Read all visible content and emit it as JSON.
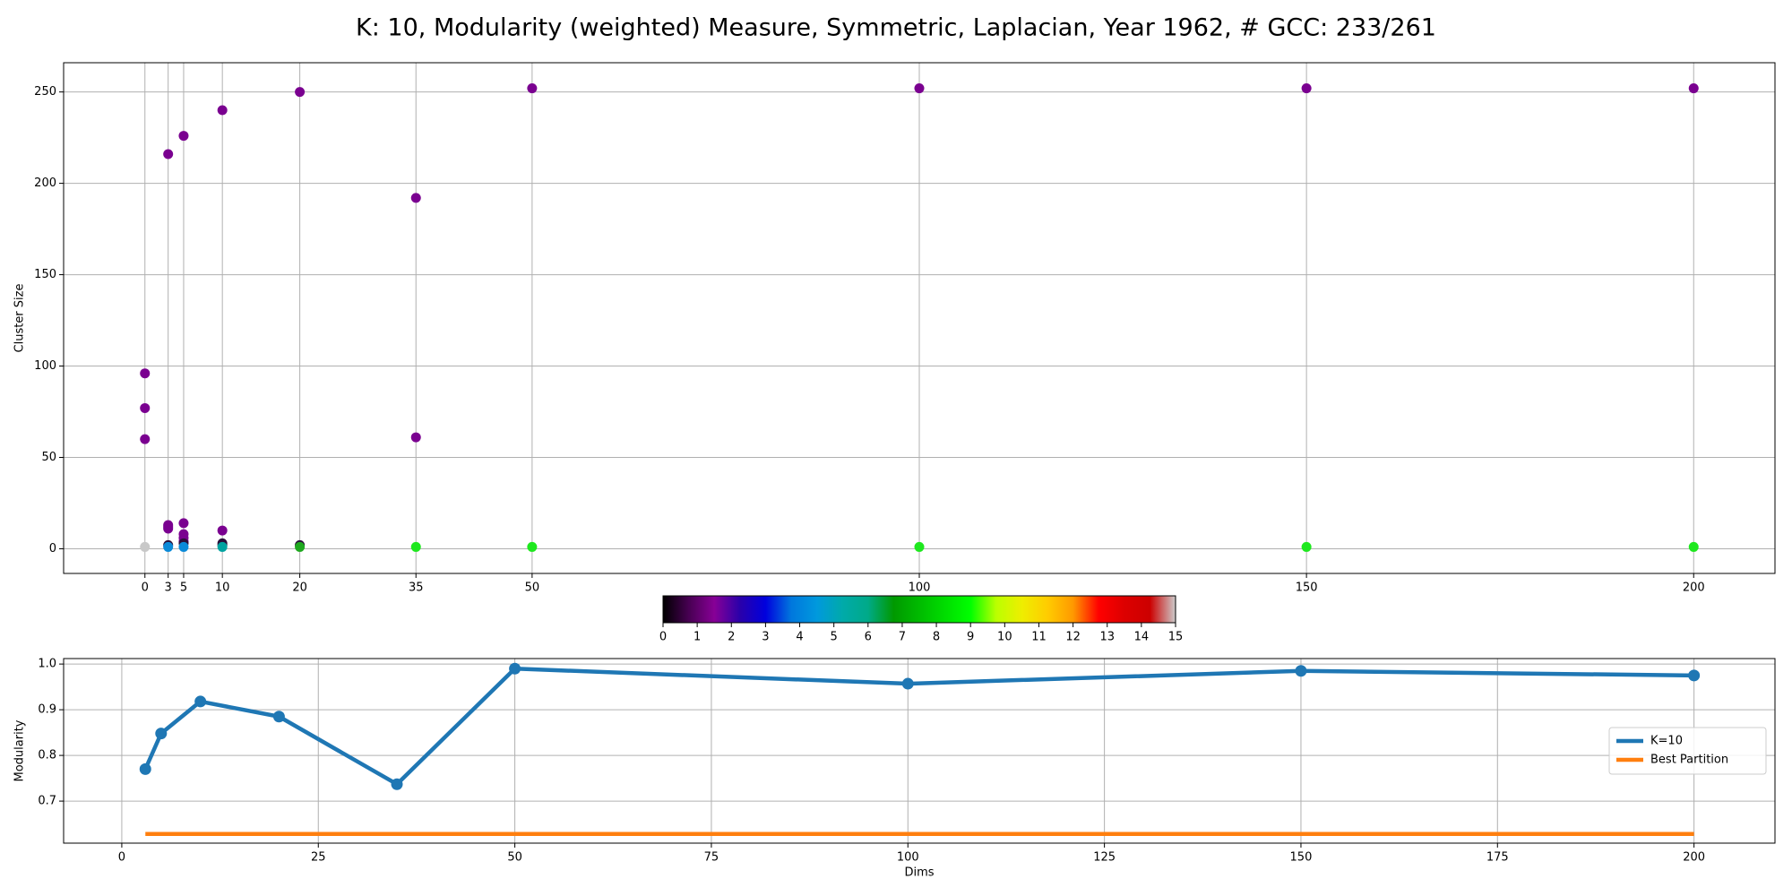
{
  "chart_data": [
    {
      "type": "scatter",
      "title": "K: 10, Modularity (weighted) Measure, Symmetric, Laplacian, Year 1962, # GCC: 233/261",
      "y_label": "Cluster Size",
      "xlim": [
        -10.5,
        210.5
      ],
      "xticks": [
        0,
        3,
        5,
        10,
        20,
        35,
        50,
        100,
        150,
        200
      ],
      "ylim": [
        -13.5,
        266
      ],
      "yticks": [
        0,
        50,
        100,
        150,
        200,
        250
      ],
      "grid": true,
      "series": [
        {
          "color": "#7a0090",
          "x": [
            0,
            0,
            0,
            3,
            3,
            3,
            3,
            5,
            5,
            5,
            5,
            5,
            10,
            10,
            20,
            35,
            35,
            50,
            100,
            150,
            200
          ],
          "values": [
            96,
            77,
            60,
            216,
            13,
            12,
            11,
            226,
            14,
            8,
            6,
            4,
            240,
            10,
            250,
            192,
            61,
            252,
            252,
            252,
            252
          ]
        },
        {
          "color": "#2b0f3a",
          "x": [
            3,
            5,
            10,
            10,
            20
          ],
          "values": [
            2,
            3,
            3,
            2,
            2
          ]
        },
        {
          "color": "#0a8ad8",
          "x": [
            3,
            5
          ],
          "values": [
            1,
            1
          ]
        },
        {
          "color": "#00a3a0",
          "x": [
            10
          ],
          "values": [
            1
          ]
        },
        {
          "color": "#1fa81f",
          "x": [
            20
          ],
          "values": [
            1
          ]
        },
        {
          "color": "#1ee81e",
          "x": [
            35,
            50,
            100,
            150,
            200
          ],
          "values": [
            1,
            1,
            1,
            1,
            1
          ]
        },
        {
          "color": "#c8c8c8",
          "x": [
            0
          ],
          "values": [
            1
          ]
        }
      ],
      "colorbar": {
        "clim": [
          0,
          15
        ],
        "ticks": [
          0,
          1,
          2,
          3,
          4,
          5,
          6,
          7,
          8,
          9,
          10,
          11,
          12,
          13,
          14,
          15
        ],
        "colors": [
          "#000000",
          "#470052",
          "#870096",
          "#2a00aa",
          "#0000dd",
          "#0077dd",
          "#0099dd",
          "#00aaaa",
          "#00aa88",
          "#009900",
          "#00bb00",
          "#00dd00",
          "#00ff00",
          "#bbff00",
          "#eeee00",
          "#ffcc00",
          "#ff9900",
          "#ff0000",
          "#dd0000",
          "#cc0000",
          "#cccccc"
        ]
      }
    },
    {
      "type": "line",
      "x_label": "Dims",
      "y_label": "Modularity",
      "xlim": [
        -7.4,
        210.3
      ],
      "xticks": [
        0,
        25,
        50,
        75,
        100,
        125,
        150,
        175,
        200
      ],
      "ylim": [
        0.608,
        1.012
      ],
      "yticks": [
        0.7,
        0.8,
        0.9,
        1.0
      ],
      "grid": true,
      "legend": "center right",
      "series": [
        {
          "name": "K=10",
          "color": "#1f77b4",
          "markers": true,
          "x": [
            3,
            5,
            10,
            20,
            35,
            50,
            100,
            150,
            200
          ],
          "values": [
            0.77,
            0.848,
            0.918,
            0.885,
            0.737,
            0.99,
            0.957,
            0.985,
            0.975
          ]
        },
        {
          "name": "Best Partition",
          "color": "#ff7f0e",
          "markers": false,
          "x": [
            3,
            5,
            10,
            20,
            35,
            50,
            100,
            150,
            200
          ],
          "values": [
            0.628,
            0.628,
            0.628,
            0.628,
            0.628,
            0.628,
            0.628,
            0.628,
            0.628
          ]
        }
      ]
    }
  ]
}
